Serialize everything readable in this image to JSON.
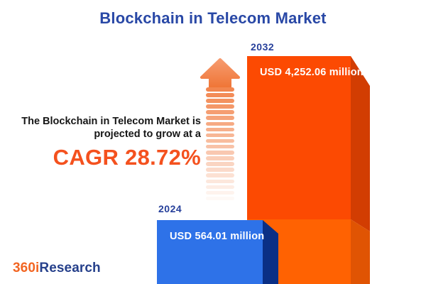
{
  "title": "Blockchain in Telecom Market",
  "tagline": {
    "line1": "The Blockchain in Telecom Market is",
    "line2": "projected to grow at a",
    "cagr": "CAGR 28.72%"
  },
  "chart_data": {
    "type": "bar",
    "title": "Blockchain in Telecom Market",
    "unit": "USD million",
    "categories": [
      "2024",
      "2032"
    ],
    "values": [
      564.01,
      4252.06
    ],
    "cagr_percent": 28.72,
    "bars": [
      {
        "year": "2024",
        "value": 564.01,
        "label": "USD 564.01 million",
        "color": "#2E72E8",
        "side_color": "#0A2F85"
      },
      {
        "year": "2032",
        "value": 4252.06,
        "label": "USD 4,252.06 million",
        "color": "#FC4A02",
        "side_color": "#D23D02",
        "overlap_color": "#FF6202",
        "overlap_side_color": "#E05403"
      }
    ],
    "layout": {
      "grid": false,
      "axes_hidden": true,
      "style": "3d-infographic",
      "value_labels_inside_bars": true
    }
  },
  "arrow": {
    "direction": "up",
    "style": "dashed-fade"
  },
  "logo": {
    "part1": "360i",
    "part2": "Research"
  },
  "colors": {
    "background": "#FFFFFF",
    "title_blue": "#2948A6",
    "year_label_blue": "#27409B",
    "tagline_text": "#161616",
    "cagr_orange": "#F4511E",
    "bar_blue": "#2E72E8",
    "bar_blue_side": "#0A2F85",
    "bar_orange": "#FC4A02",
    "bar_orange_side": "#D23D02",
    "bar_orange_light": "#FF6202",
    "bar_orange_light_side": "#E05403",
    "arrow_orange": "#F2864F",
    "value_text": "#FFFFFF",
    "logo_orange": "#F26522",
    "logo_blue": "#26408B"
  }
}
